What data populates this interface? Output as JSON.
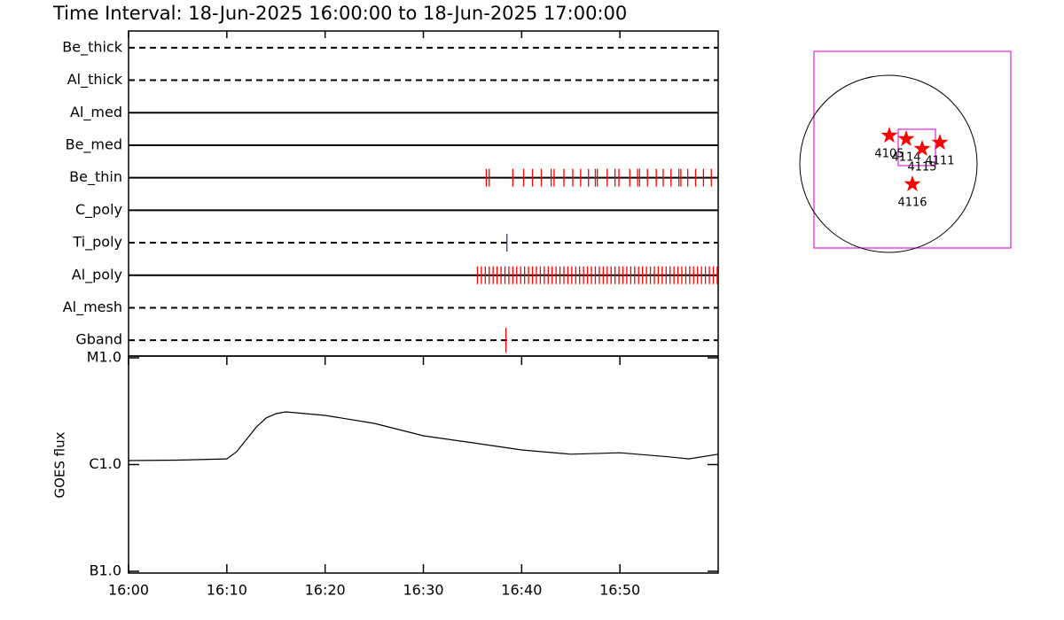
{
  "chart_data": [
    {
      "type": "event",
      "title": "Time Interval: 18-Jun-2025 16:00:00 to 18-Jun-2025 17:00:00",
      "xlim": [
        0,
        60
      ],
      "rows": [
        {
          "label": "Be_thick",
          "style": "dashed",
          "color": "#ff0000",
          "events": []
        },
        {
          "label": "Al_thick",
          "style": "dashed",
          "color": "#ff0000",
          "events": []
        },
        {
          "label": "Al_med",
          "style": "solid",
          "color": "#ff0000",
          "events": []
        },
        {
          "label": "Be_med",
          "style": "solid",
          "color": "#ff0000",
          "events": []
        },
        {
          "label": "Be_thin",
          "style": "solid",
          "color": "#ff0000",
          "events": [
            36.4,
            36.7,
            39.1,
            40.2,
            41.1,
            42.0,
            43.0,
            43.3,
            44.3,
            45.2,
            46.0,
            46.8,
            47.5,
            47.7,
            48.7,
            49.5,
            49.9,
            51.0,
            51.8,
            52.0,
            52.8,
            53.7,
            54.4,
            55.2,
            56.0,
            56.2,
            56.9,
            57.7,
            58.5,
            59.3
          ]
        },
        {
          "label": "C_poly",
          "style": "solid",
          "color": "#ff0000",
          "events": []
        },
        {
          "label": "Ti_poly",
          "style": "dashed",
          "color": "#3030c0",
          "events": [
            38.5
          ]
        },
        {
          "label": "Al_poly",
          "style": "solid",
          "color": "#ff0000",
          "events": [
            35.5,
            35.9,
            36.3,
            36.7,
            37.1,
            37.5,
            37.9,
            38.3,
            38.7,
            39.1,
            39.5,
            39.9,
            40.3,
            40.7,
            41.1,
            41.5,
            41.9,
            42.3,
            42.7,
            43.1,
            43.5,
            43.9,
            44.3,
            44.7,
            45.1,
            45.5,
            45.9,
            46.3,
            46.7,
            47.1,
            47.5,
            47.9,
            48.3,
            48.7,
            49.1,
            49.5,
            49.9,
            50.3,
            50.7,
            51.1,
            51.5,
            51.9,
            52.3,
            52.7,
            53.1,
            53.5,
            53.9,
            54.3,
            54.7,
            55.1,
            55.5,
            55.9,
            56.3,
            56.7,
            57.1,
            57.5,
            57.9,
            58.3,
            58.7,
            59.1,
            59.5,
            59.9
          ]
        },
        {
          "label": "Al_mesh",
          "style": "dashed",
          "color": "#ff0000",
          "events": []
        },
        {
          "label": "Gband",
          "style": "dashed",
          "color": "#ff0000",
          "events": [
            38.4
          ]
        }
      ]
    },
    {
      "type": "line",
      "ylabel": "GOES flux",
      "log_scale": true,
      "color": "#000000",
      "xlim": [
        0,
        60
      ],
      "xticks": [
        {
          "value": 0,
          "label": "16:00"
        },
        {
          "value": 10,
          "label": "16:10"
        },
        {
          "value": 20,
          "label": "16:20"
        },
        {
          "value": 30,
          "label": "16:30"
        },
        {
          "value": 40,
          "label": "16:40"
        },
        {
          "value": 50,
          "label": "16:50"
        }
      ],
      "ylim": [
        1e-07,
        1e-05
      ],
      "yticks": [
        {
          "value": 1e-07,
          "label": "B1.0"
        },
        {
          "value": 1e-06,
          "label": "C1.0"
        },
        {
          "value": 1e-05,
          "label": "M1.0"
        }
      ],
      "x": [
        0,
        5,
        10,
        11,
        12,
        13,
        14,
        15,
        16,
        20,
        25,
        30,
        35,
        40,
        45,
        50,
        55,
        57,
        60
      ],
      "values": [
        1.09e-06,
        1.1e-06,
        1.13e-06,
        1.32e-06,
        1.72e-06,
        2.25e-06,
        2.73e-06,
        3e-06,
        3.12e-06,
        2.89e-06,
        2.43e-06,
        1.86e-06,
        1.6e-06,
        1.37e-06,
        1.25e-06,
        1.29e-06,
        1.18e-06,
        1.13e-06,
        1.25e-06
      ]
    },
    {
      "type": "map",
      "xlim": [
        -794,
        1304
      ],
      "ylim": [
        -898,
        1200
      ],
      "solar_radius": 945,
      "box_color": "#e020e0",
      "star_color": "#ff0000",
      "fov_box": {
        "x": [
          104,
          501
        ],
        "y": [
          -19,
          369
        ]
      },
      "regions": [
        {
          "label": "4105",
          "x": 9,
          "y": 302
        },
        {
          "label": "4114",
          "x": 189,
          "y": 265
        },
        {
          "label": "4115",
          "x": 359,
          "y": 161
        },
        {
          "label": "4111",
          "x": 548,
          "y": 227
        },
        {
          "label": "4116",
          "x": 255,
          "y": -217
        }
      ]
    }
  ]
}
